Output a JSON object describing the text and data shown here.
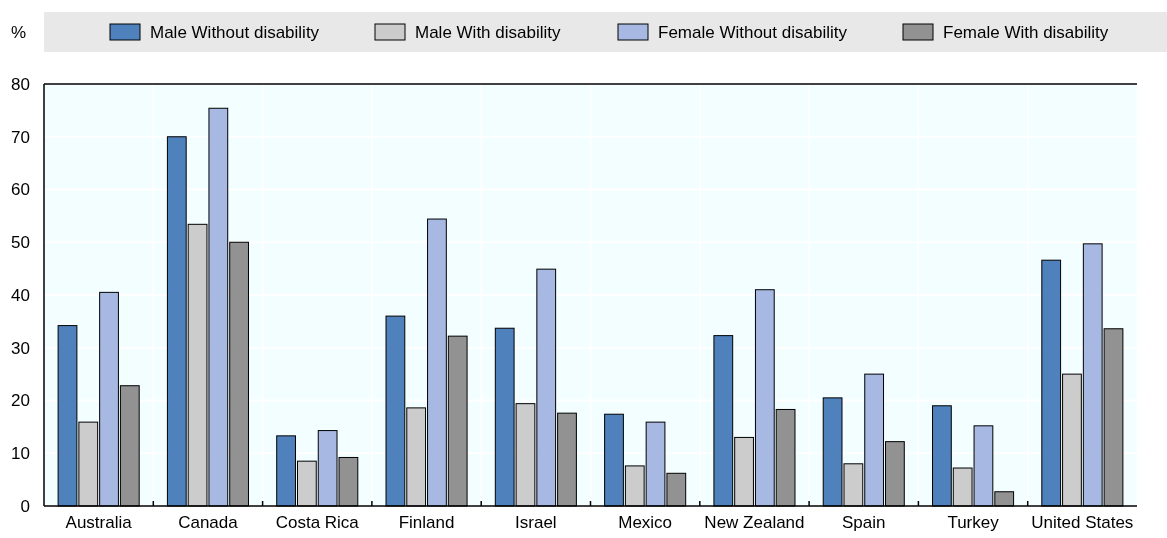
{
  "chart_data": {
    "type": "bar",
    "ylabel": "%",
    "categories": [
      "Australia",
      "Canada",
      "Costa Rica",
      "Finland",
      "Israel",
      "Mexico",
      "New Zealand",
      "Spain",
      "Turkey",
      "United States"
    ],
    "series": [
      {
        "name": "Male Without disability",
        "color": "#4f81bd",
        "values": [
          34.2,
          70,
          13.3,
          36,
          33.7,
          17.4,
          32.3,
          20.5,
          19,
          46.6
        ]
      },
      {
        "name": "Male With disability",
        "color": "#cccccc",
        "values": [
          15.9,
          53.4,
          8.5,
          18.6,
          19.4,
          7.6,
          13,
          8,
          7.2,
          25
        ]
      },
      {
        "name": "Female Without disability",
        "color": "#a7b9e3",
        "values": [
          40.5,
          75.4,
          14.3,
          54.4,
          44.9,
          15.9,
          41,
          25,
          15.2,
          49.7
        ]
      },
      {
        "name": "Female With disability",
        "color": "#929292",
        "values": [
          22.8,
          50,
          9.2,
          32.2,
          17.6,
          6.2,
          18.3,
          12.2,
          2.7,
          33.6
        ]
      }
    ],
    "ylim": [
      0,
      80
    ],
    "yticks": [
      0,
      10,
      20,
      30,
      40,
      50,
      60,
      70,
      80
    ],
    "grid": true,
    "legend": "top"
  }
}
